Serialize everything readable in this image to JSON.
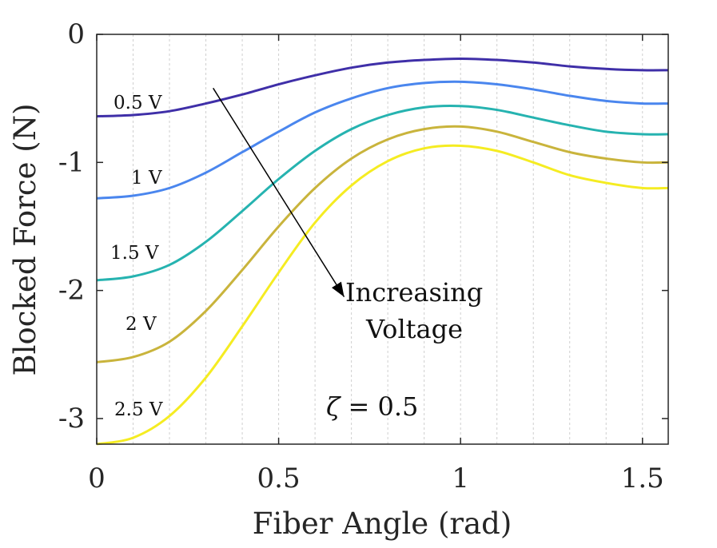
{
  "chart_data": {
    "type": "line",
    "xlabel": "Fiber Angle (rad)",
    "ylabel": "Blocked Force (N)",
    "xlim": [
      0,
      1.5708
    ],
    "ylim": [
      -3.2,
      0
    ],
    "xticks": [
      0,
      0.5,
      1,
      1.5
    ],
    "yticks": [
      0,
      -1,
      -2,
      -3
    ],
    "xtick_labels": [
      "0",
      "0.5",
      "1",
      "1.5"
    ],
    "ytick_labels": [
      "0",
      "-1",
      "-2",
      "-3"
    ],
    "grid": "x-dashed",
    "series": [
      {
        "name": "0.5 V",
        "color": "#3f2fa8",
        "x": [
          0,
          0.1,
          0.2,
          0.3,
          0.4,
          0.5,
          0.6,
          0.7,
          0.8,
          0.9,
          1.0,
          1.1,
          1.2,
          1.3,
          1.4,
          1.5,
          1.5708
        ],
        "y": [
          -0.64,
          -0.63,
          -0.6,
          -0.54,
          -0.47,
          -0.39,
          -0.32,
          -0.26,
          -0.22,
          -0.2,
          -0.19,
          -0.2,
          -0.22,
          -0.25,
          -0.27,
          -0.28,
          -0.28
        ]
      },
      {
        "name": "1 V",
        "color": "#4a86ee",
        "x": [
          0,
          0.1,
          0.2,
          0.3,
          0.4,
          0.5,
          0.6,
          0.7,
          0.8,
          0.9,
          1.0,
          1.1,
          1.2,
          1.3,
          1.4,
          1.5,
          1.5708
        ],
        "y": [
          -1.28,
          -1.26,
          -1.2,
          -1.08,
          -0.92,
          -0.76,
          -0.61,
          -0.5,
          -0.42,
          -0.38,
          -0.37,
          -0.39,
          -0.43,
          -0.48,
          -0.52,
          -0.54,
          -0.54
        ]
      },
      {
        "name": "1.5 V",
        "color": "#26b3b0",
        "x": [
          0,
          0.1,
          0.2,
          0.3,
          0.4,
          0.5,
          0.6,
          0.7,
          0.8,
          0.9,
          1.0,
          1.1,
          1.2,
          1.3,
          1.4,
          1.5,
          1.5708
        ],
        "y": [
          -1.92,
          -1.89,
          -1.8,
          -1.62,
          -1.38,
          -1.13,
          -0.91,
          -0.74,
          -0.63,
          -0.57,
          -0.56,
          -0.59,
          -0.65,
          -0.71,
          -0.76,
          -0.78,
          -0.78
        ]
      },
      {
        "name": "2 V",
        "color": "#c9b43c",
        "x": [
          0,
          0.1,
          0.2,
          0.3,
          0.4,
          0.5,
          0.6,
          0.7,
          0.8,
          0.9,
          1.0,
          1.1,
          1.2,
          1.3,
          1.4,
          1.5,
          1.5708
        ],
        "y": [
          -2.56,
          -2.52,
          -2.4,
          -2.16,
          -1.84,
          -1.5,
          -1.2,
          -0.97,
          -0.82,
          -0.74,
          -0.72,
          -0.76,
          -0.84,
          -0.92,
          -0.97,
          -1.0,
          -1.0
        ]
      },
      {
        "name": "2.5 V",
        "color": "#f5ec22",
        "x": [
          0,
          0.1,
          0.2,
          0.3,
          0.4,
          0.5,
          0.6,
          0.7,
          0.8,
          0.9,
          1.0,
          1.1,
          1.2,
          1.3,
          1.4,
          1.5,
          1.5708
        ],
        "y": [
          -3.2,
          -3.15,
          -2.98,
          -2.68,
          -2.28,
          -1.86,
          -1.47,
          -1.18,
          -0.99,
          -0.89,
          -0.87,
          -0.91,
          -1.0,
          -1.1,
          -1.16,
          -1.2,
          -1.2
        ]
      }
    ],
    "annotations": {
      "series_labels": [
        "0.5 V",
        "1 V",
        "1.5 V",
        "2 V",
        "2.5 V"
      ],
      "arrow_text_line1": "Increasing",
      "arrow_text_line2": "Voltage",
      "zeta_symbol": "ζ",
      "zeta_rest": " = 0.5",
      "arrow_from": [
        0.32,
        -0.42
      ],
      "arrow_to": [
        0.68,
        -2.05
      ]
    }
  }
}
